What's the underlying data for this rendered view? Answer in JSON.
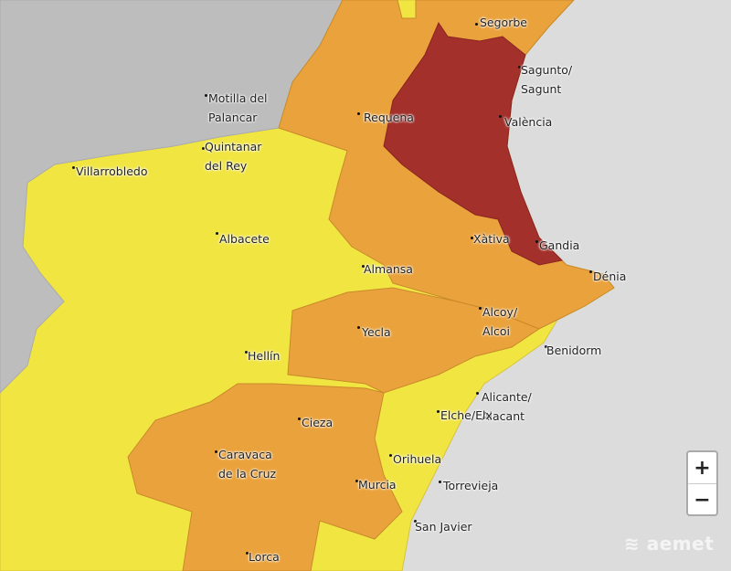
{
  "map": {
    "colors": {
      "sea": "#dcdcdc",
      "no_data_land": "#bdbdbd",
      "yellow": "#f1e542",
      "orange": "#eaa23c",
      "red": "#a3302b",
      "border": "#c98a2a"
    },
    "cities": [
      {
        "lines": [
          "Segorbe"
        ]
      },
      {
        "lines": [
          "Sagunto/",
          "Sagunt"
        ]
      },
      {
        "lines": [
          "València"
        ]
      },
      {
        "lines": [
          "Requena"
        ]
      },
      {
        "lines": [
          "Motilla del",
          "Palancar"
        ]
      },
      {
        "lines": [
          "Quintanar",
          "del Rey"
        ]
      },
      {
        "lines": [
          "Villarrobledo"
        ]
      },
      {
        "lines": [
          "Albacete"
        ]
      },
      {
        "lines": [
          "Almansa"
        ]
      },
      {
        "lines": [
          "Xàtiva"
        ]
      },
      {
        "lines": [
          "Gandia"
        ]
      },
      {
        "lines": [
          "Dénia"
        ]
      },
      {
        "lines": [
          "Alcoy/",
          "Alcoi"
        ]
      },
      {
        "lines": [
          "Yecla"
        ]
      },
      {
        "lines": [
          "Benidorm"
        ]
      },
      {
        "lines": [
          "Hellín"
        ]
      },
      {
        "lines": [
          "Alicante/",
          "Alacant"
        ]
      },
      {
        "lines": [
          "Elche/Elx"
        ]
      },
      {
        "lines": [
          "Cieza"
        ]
      },
      {
        "lines": [
          "Caravaca",
          "de la Cruz"
        ]
      },
      {
        "lines": [
          "Orihuela"
        ]
      },
      {
        "lines": [
          "Murcia"
        ]
      },
      {
        "lines": [
          "Torrevieja"
        ]
      },
      {
        "lines": [
          "San Javier"
        ]
      },
      {
        "lines": [
          "Lorca"
        ]
      }
    ]
  },
  "controls": {
    "zoom_in": "+",
    "zoom_out": "−"
  },
  "logo": "aemet"
}
